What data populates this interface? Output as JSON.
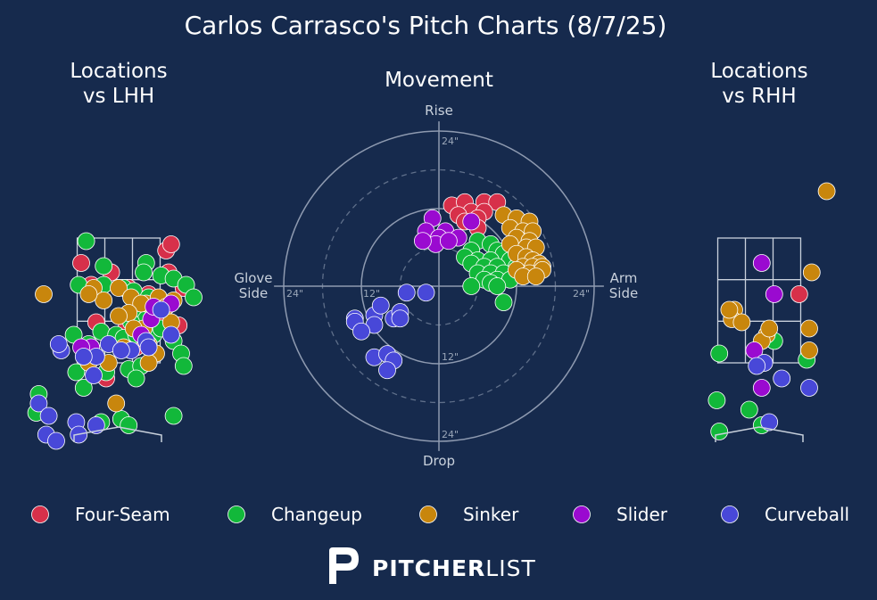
{
  "title": "Carlos Carrasco's Pitch Charts (8/7/25)",
  "brand": {
    "bold": "PITCHER",
    "light": "LIST"
  },
  "colors": {
    "background": "#162a4d",
    "Four-Seam": "#d7304a",
    "Changeup": "#12b83a",
    "Sinker": "#c8860d",
    "Slider": "#9a0ad0",
    "Curveball": "#4848d8"
  },
  "legend": [
    "Four-Seam",
    "Changeup",
    "Sinker",
    "Slider",
    "Curveball"
  ],
  "chart_data": [
    {
      "type": "scatter",
      "title": "Locations\nvs LHH",
      "xlabel": "",
      "ylabel": "",
      "xlim": [
        -3.5,
        3.5
      ],
      "ylim": [
        0,
        5
      ],
      "strike_zone": {
        "x": [
          -0.83,
          0.83
        ],
        "z": [
          1.5,
          3.5
        ]
      },
      "series": [
        {
          "name": "Four-Seam",
          "points": [
            [
              -0.75,
              3.1
            ],
            [
              -0.55,
              2.75
            ],
            [
              0.2,
              2.7
            ],
            [
              -0.15,
              2.95
            ],
            [
              0.95,
              3.3
            ],
            [
              1.05,
              3.4
            ],
            [
              0.6,
              2.6
            ],
            [
              1.0,
              2.95
            ],
            [
              1.3,
              2.7
            ],
            [
              0.95,
              2.4
            ],
            [
              1.2,
              2.1
            ],
            [
              0.9,
              2.2
            ],
            [
              -0.45,
              2.15
            ],
            [
              0.5,
              2.2
            ],
            [
              0.15,
              2.05
            ],
            [
              -0.1,
              1.85
            ],
            [
              0.35,
              1.75
            ],
            [
              -0.25,
              1.25
            ]
          ]
        },
        {
          "name": "Changeup",
          "points": [
            [
              -0.65,
              3.45
            ],
            [
              -0.3,
              3.05
            ],
            [
              0.55,
              3.1
            ],
            [
              0.5,
              2.95
            ],
            [
              0.85,
              2.9
            ],
            [
              1.1,
              2.85
            ],
            [
              1.35,
              2.75
            ],
            [
              -0.8,
              2.75
            ],
            [
              -0.3,
              2.75
            ],
            [
              0.1,
              2.7
            ],
            [
              0.3,
              2.65
            ],
            [
              0.6,
              2.55
            ],
            [
              1.5,
              2.55
            ],
            [
              0.35,
              2.3
            ],
            [
              0.55,
              2.2
            ],
            [
              -0.35,
              2.0
            ],
            [
              -0.05,
              1.95
            ],
            [
              0.1,
              1.9
            ],
            [
              0.35,
              1.95
            ],
            [
              0.7,
              1.95
            ],
            [
              1.1,
              1.85
            ],
            [
              0.85,
              2.05
            ],
            [
              0.25,
              2.15
            ],
            [
              -0.55,
              1.75
            ],
            [
              -0.9,
              1.95
            ],
            [
              -0.6,
              1.8
            ],
            [
              -0.85,
              1.35
            ],
            [
              -0.25,
              1.35
            ],
            [
              0.2,
              1.4
            ],
            [
              0.45,
              1.45
            ],
            [
              0.35,
              1.25
            ],
            [
              1.25,
              1.65
            ],
            [
              1.3,
              1.45
            ],
            [
              -0.7,
              1.1
            ],
            [
              -0.35,
              0.55
            ],
            [
              -1.6,
              1.0
            ],
            [
              0.05,
              0.6
            ],
            [
              -1.65,
              0.7
            ],
            [
              1.1,
              0.65
            ],
            [
              0.2,
              0.5
            ]
          ]
        },
        {
          "name": "Sinker",
          "points": [
            [
              -1.5,
              2.6
            ],
            [
              -0.5,
              2.7
            ],
            [
              0.0,
              2.7
            ],
            [
              0.25,
              2.55
            ],
            [
              0.55,
              2.45
            ],
            [
              0.8,
              2.55
            ],
            [
              0.95,
              2.4
            ],
            [
              1.1,
              2.5
            ],
            [
              0.45,
              2.45
            ],
            [
              0.2,
              2.3
            ],
            [
              -0.3,
              2.5
            ],
            [
              -0.6,
              2.6
            ],
            [
              1.05,
              2.15
            ],
            [
              0.5,
              2.05
            ],
            [
              0.3,
              2.05
            ],
            [
              0.0,
              2.25
            ],
            [
              -0.2,
              1.5
            ],
            [
              0.6,
              1.8
            ],
            [
              0.1,
              1.75
            ],
            [
              0.75,
              1.65
            ],
            [
              -0.6,
              1.5
            ],
            [
              0.6,
              1.5
            ],
            [
              -0.05,
              0.85
            ]
          ]
        },
        {
          "name": "Slider",
          "points": [
            [
              1.05,
              2.45
            ],
            [
              0.65,
              2.2
            ],
            [
              0.45,
              1.95
            ],
            [
              -0.55,
              1.75
            ],
            [
              -0.75,
              1.75
            ],
            [
              0.7,
              2.4
            ]
          ]
        },
        {
          "name": "Curveball",
          "points": [
            [
              0.85,
              2.35
            ],
            [
              1.05,
              1.95
            ],
            [
              0.55,
              1.85
            ],
            [
              0.25,
              1.7
            ],
            [
              -0.2,
              1.8
            ],
            [
              -0.45,
              1.6
            ],
            [
              -0.7,
              1.6
            ],
            [
              -1.15,
              1.7
            ],
            [
              -1.2,
              1.8
            ],
            [
              0.05,
              1.7
            ],
            [
              -0.5,
              1.3
            ],
            [
              -1.6,
              0.85
            ],
            [
              -1.4,
              0.65
            ],
            [
              -0.85,
              0.55
            ],
            [
              -0.45,
              0.5
            ],
            [
              -1.45,
              0.35
            ],
            [
              -0.8,
              0.35
            ],
            [
              -1.25,
              0.25
            ],
            [
              0.6,
              1.75
            ]
          ]
        }
      ]
    },
    {
      "type": "scatter",
      "title": "Movement",
      "xlabel": "",
      "ylabel": "",
      "axis_labels": {
        "top": "Rise",
        "bottom": "Drop",
        "left": "Glove\nSide",
        "right": "Arm\nSide"
      },
      "rings": [
        "12\"",
        "24\""
      ],
      "xlim": [
        -24,
        24
      ],
      "ylim": [
        -24,
        24
      ],
      "series": [
        {
          "name": "Four-Seam",
          "points": [
            [
              2,
              12.5
            ],
            [
              4,
              13
            ],
            [
              7,
              13
            ],
            [
              9,
              13
            ],
            [
              5,
              11.5
            ],
            [
              7,
              11.5
            ],
            [
              3,
              11
            ],
            [
              4,
              10
            ],
            [
              6,
              10.5
            ],
            [
              6,
              9
            ]
          ]
        },
        {
          "name": "Changeup",
          "points": [
            [
              6,
              7
            ],
            [
              8,
              6.5
            ],
            [
              5,
              5.5
            ],
            [
              9,
              5.5
            ],
            [
              10,
              5
            ],
            [
              4,
              4.5
            ],
            [
              6,
              4
            ],
            [
              8,
              4
            ],
            [
              11,
              4
            ],
            [
              5,
              3.5
            ],
            [
              7,
              3
            ],
            [
              9,
              3
            ],
            [
              12,
              3
            ],
            [
              6,
              2
            ],
            [
              8,
              2
            ],
            [
              10,
              2
            ],
            [
              7,
              1
            ],
            [
              9,
              1
            ],
            [
              11,
              1
            ],
            [
              8,
              0.5
            ],
            [
              5,
              0
            ],
            [
              9,
              0
            ],
            [
              10,
              -2.5
            ]
          ]
        },
        {
          "name": "Sinker",
          "points": [
            [
              10,
              11
            ],
            [
              12,
              10.5
            ],
            [
              14,
              10
            ],
            [
              11,
              9
            ],
            [
              13,
              8.5
            ],
            [
              14.5,
              8.5
            ],
            [
              12,
              7.5
            ],
            [
              14,
              7
            ],
            [
              11,
              6.5
            ],
            [
              13.5,
              6
            ],
            [
              15,
              6
            ],
            [
              12,
              5
            ],
            [
              13.5,
              4.5
            ],
            [
              14.5,
              4
            ],
            [
              15.5,
              3.5
            ],
            [
              13,
              3
            ],
            [
              14.5,
              3
            ],
            [
              16,
              3
            ],
            [
              12,
              2.5
            ],
            [
              14,
              2
            ],
            [
              16,
              2.5
            ],
            [
              13,
              1.5
            ],
            [
              15,
              1.5
            ]
          ]
        },
        {
          "name": "Slider",
          "points": [
            [
              -1,
              10.5
            ],
            [
              -2,
              8.5
            ],
            [
              1,
              8.5
            ],
            [
              0,
              7.5
            ],
            [
              3,
              7.5
            ],
            [
              -0.5,
              6.5
            ],
            [
              1.5,
              7
            ],
            [
              -2.5,
              7
            ],
            [
              5,
              10
            ]
          ]
        },
        {
          "name": "Curveball",
          "points": [
            [
              -5,
              -1
            ],
            [
              -2,
              -1
            ],
            [
              -10,
              -4.5
            ],
            [
              -9,
              -3
            ],
            [
              -13,
              -5
            ],
            [
              -10,
              -6
            ],
            [
              -13,
              -5.5
            ],
            [
              -7,
              -5
            ],
            [
              -6,
              -4
            ],
            [
              -6,
              -5
            ],
            [
              -12,
              -7
            ],
            [
              -10,
              -11
            ],
            [
              -8,
              -10.5
            ],
            [
              -7,
              -11.5
            ],
            [
              -8,
              -13
            ]
          ]
        }
      ]
    },
    {
      "type": "scatter",
      "title": "Locations\nvs RHH",
      "xlabel": "",
      "ylabel": "",
      "xlim": [
        -3.5,
        3.5
      ],
      "ylim": [
        0,
        5
      ],
      "strike_zone": {
        "x": [
          -0.83,
          0.83
        ],
        "z": [
          1.5,
          3.5
        ]
      },
      "series": [
        {
          "name": "Four-Seam",
          "points": [
            [
              0.8,
              2.6
            ]
          ]
        },
        {
          "name": "Changeup",
          "points": [
            [
              -0.8,
              1.65
            ],
            [
              0.3,
              1.85
            ],
            [
              0.95,
              1.55
            ],
            [
              -0.85,
              0.9
            ],
            [
              -0.2,
              0.75
            ],
            [
              0.05,
              0.5
            ],
            [
              -0.8,
              0.4
            ]
          ]
        },
        {
          "name": "Sinker",
          "points": [
            [
              1.35,
              4.25
            ],
            [
              1.05,
              2.95
            ],
            [
              1.0,
              2.05
            ],
            [
              1.0,
              1.7
            ],
            [
              0.15,
              1.95
            ],
            [
              0.05,
              1.85
            ],
            [
              -0.5,
              2.35
            ],
            [
              -0.55,
              2.2
            ],
            [
              -0.35,
              2.15
            ],
            [
              -0.6,
              2.35
            ],
            [
              0.2,
              2.05
            ]
          ]
        },
        {
          "name": "Slider",
          "points": [
            [
              0.05,
              3.1
            ],
            [
              0.3,
              2.6
            ],
            [
              -0.1,
              1.7
            ],
            [
              0.05,
              1.1
            ]
          ]
        },
        {
          "name": "Curveball",
          "points": [
            [
              0.1,
              1.5
            ],
            [
              0.45,
              1.25
            ],
            [
              1.0,
              1.1
            ],
            [
              0.2,
              0.55
            ],
            [
              -0.05,
              1.45
            ]
          ]
        }
      ]
    }
  ]
}
